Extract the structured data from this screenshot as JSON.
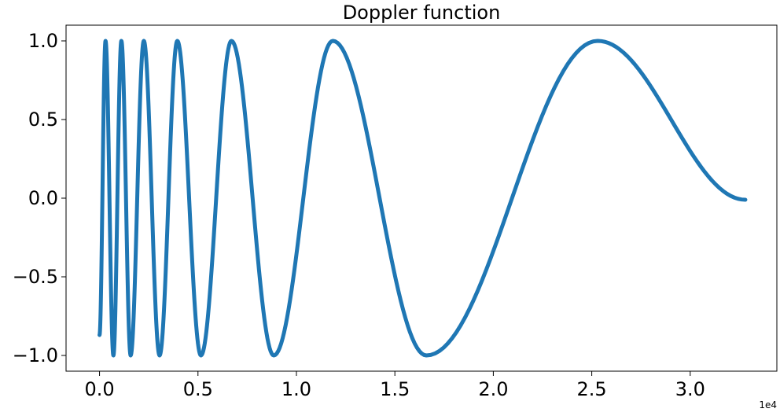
{
  "chart_data": {
    "type": "line",
    "title": "Doppler function",
    "xlabel": "",
    "ylabel": "",
    "x_offset_label": "1e4",
    "xlim": [
      -0.17,
      3.44
    ],
    "ylim": [
      -1.1,
      1.1
    ],
    "xticks": [
      0.0,
      0.5,
      1.0,
      1.5,
      2.0,
      2.5,
      3.0
    ],
    "xtick_labels": [
      "0.0",
      "0.5",
      "1.0",
      "1.5",
      "2.0",
      "2.5",
      "3.0"
    ],
    "yticks": [
      1.0,
      0.5,
      0.0,
      -0.5,
      -1.0
    ],
    "ytick_labels": [
      "1.0",
      "0.5",
      "0.0",
      "−0.5",
      "−1.0"
    ],
    "grid": false,
    "legend": "none",
    "color": "#1f77b4",
    "series": [
      {
        "x": [
          0.0,
          0.0305,
          0.0705,
          0.111,
          0.158,
          0.225,
          0.305,
          0.395,
          0.515,
          0.67,
          0.885,
          1.185,
          1.66,
          2.53,
          3.28
        ],
        "y": [
          -0.87,
          1.0,
          -1.0,
          1.0,
          -1.0,
          1.0,
          -1.0,
          1.0,
          -1.0,
          1.0,
          -1.0,
          1.0,
          -1.0,
          1.0,
          -0.01
        ]
      }
    ]
  }
}
